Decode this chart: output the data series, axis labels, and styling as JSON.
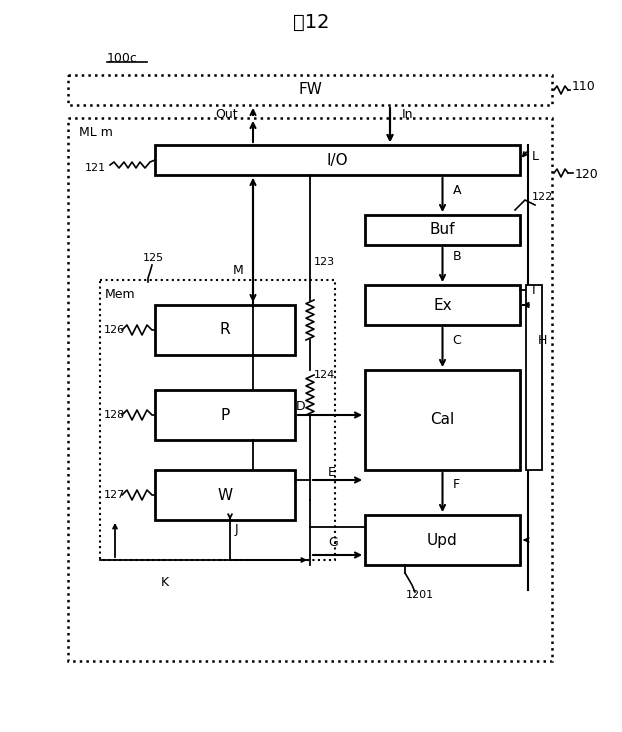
{
  "title": "囲12",
  "bg_color": "#ffffff",
  "fig_width": 6.22,
  "fig_height": 7.32,
  "label_100c": "100c",
  "label_110": "110",
  "label_120": "120",
  "label_fw": "FW",
  "label_io": "I/O",
  "label_buf": "Buf",
  "label_ex": "Ex",
  "label_cal": "Cal",
  "label_upd": "Upd",
  "label_mem": "Mem",
  "label_r": "R",
  "label_p": "P",
  "label_w": "W",
  "label_ml": "ML m",
  "label_121": "121",
  "label_122": "122",
  "label_123": "123",
  "label_124": "124",
  "label_125": "125",
  "label_126": "126",
  "label_127": "127",
  "label_128": "128",
  "label_1201": "1201",
  "label_out": "Out",
  "label_in": "In",
  "label_a": "A",
  "label_b": "B",
  "label_c": "C",
  "label_d": "D",
  "label_e": "E",
  "label_f": "F",
  "label_g": "G",
  "label_h": "H",
  "label_i": "I",
  "label_j": "J",
  "label_k": "K",
  "label_l": "L",
  "label_m": "M"
}
